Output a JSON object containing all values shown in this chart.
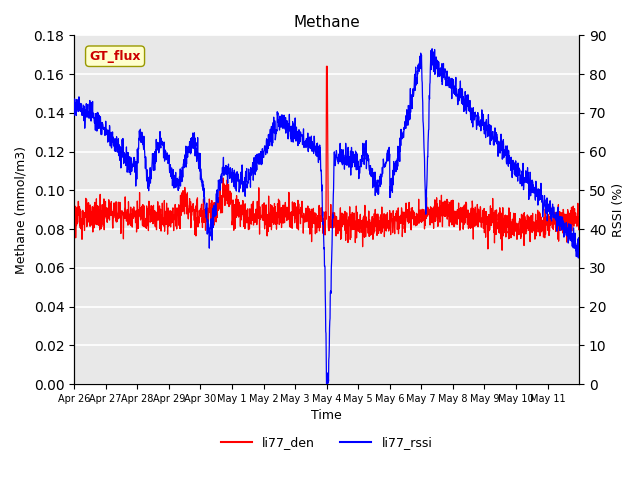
{
  "title": "Methane",
  "xlabel": "Time",
  "ylabel_left": "Methane (mmol/m3)",
  "ylabel_right": "RSSI (%)",
  "ylim_left": [
    0.0,
    0.18
  ],
  "ylim_right": [
    0,
    90
  ],
  "yticks_left": [
    0.0,
    0.02,
    0.04,
    0.06,
    0.08,
    0.1,
    0.12,
    0.14,
    0.16,
    0.18
  ],
  "yticks_right": [
    0,
    10,
    20,
    30,
    40,
    50,
    60,
    70,
    80,
    90
  ],
  "xtick_labels": [
    "Apr 26",
    "Apr 27",
    "Apr 28",
    "Apr 29",
    "Apr 30",
    "May 1",
    "May 2",
    "May 3",
    "May 4",
    "May 5",
    "May 6",
    "May 7",
    "May 8",
    "May 9",
    "May 10",
    "May 11"
  ],
  "legend_labels": [
    "li77_den",
    "li77_rssi"
  ],
  "annotation_text": "GT_flux",
  "annotation_box_facecolor": "#ffffcc",
  "annotation_text_color": "#cc0000",
  "annotation_box_edgecolor": "#999900",
  "bg_axes": "#e8e8e8",
  "grid_color": "white"
}
